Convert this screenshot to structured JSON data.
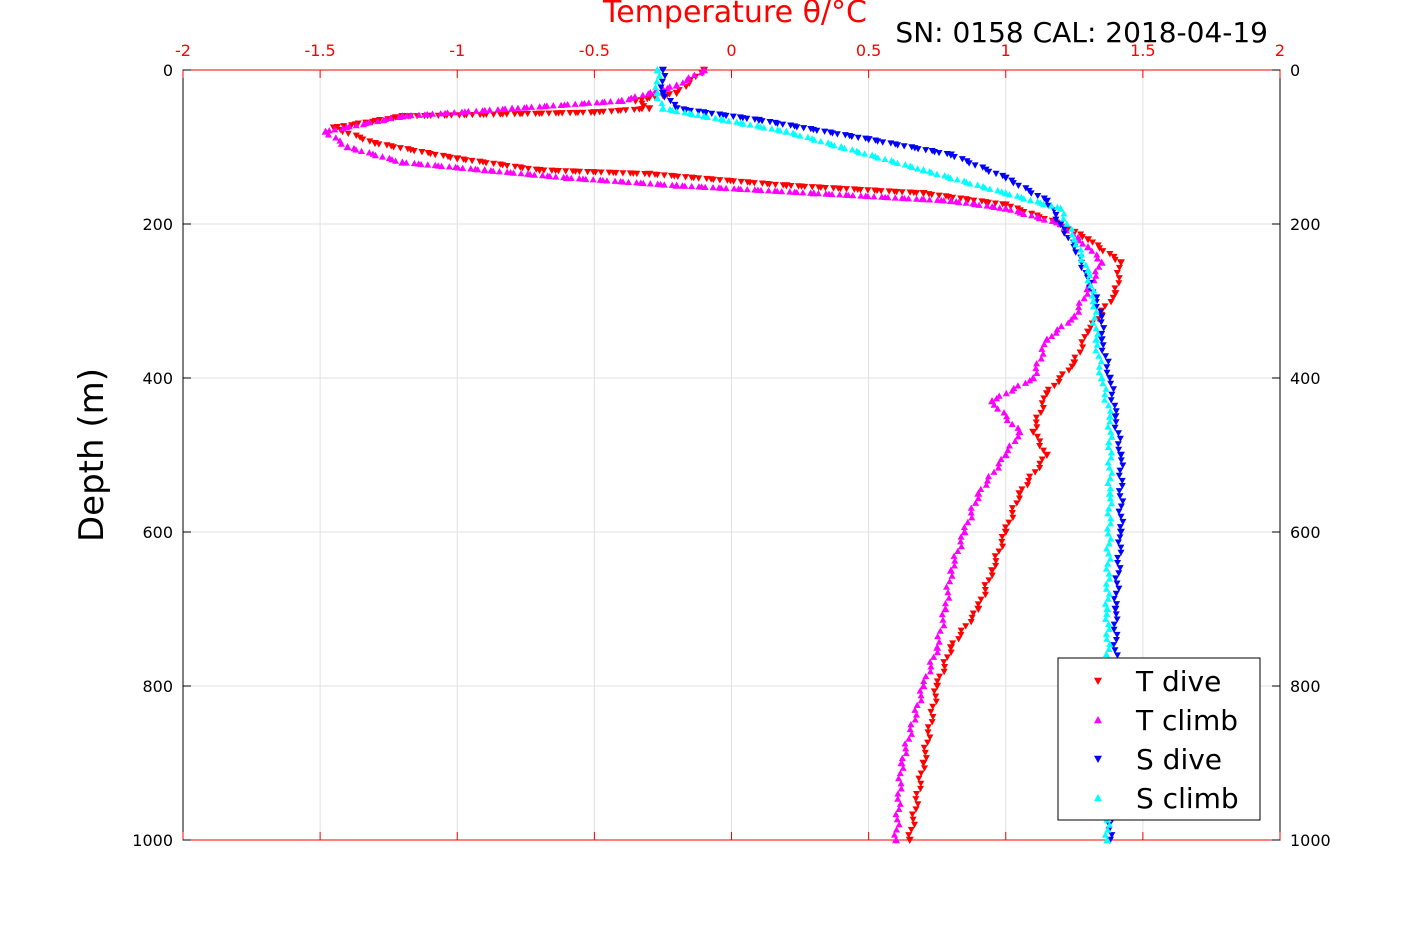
{
  "chart_data": {
    "type": "scatter",
    "xlabel": "Temperature θ/°C",
    "ylabel": "Depth (m)",
    "annotation": "SN: 0158  CAL: 2018-04-19",
    "xlim": [
      -2,
      2
    ],
    "ylim": [
      0,
      1000
    ],
    "y_reversed": true,
    "x_ticks": [
      "-2",
      "-1.5",
      "-1",
      "-0.5",
      "0",
      "0.5",
      "1",
      "1.5",
      "2"
    ],
    "y_ticks": [
      "0",
      "200",
      "400",
      "600",
      "800",
      "1000"
    ],
    "grid": true,
    "legend_position": "bottom-right",
    "axis_color": "#ff0000",
    "series": [
      {
        "name": "T dive",
        "color": "#ff0000",
        "marker": "triangle-down",
        "x": [
          -0.1,
          -0.2,
          -0.35,
          -0.3,
          -0.5,
          -1.2,
          -1.45,
          -1.3,
          -1.0,
          -0.7,
          -0.3,
          0.2,
          0.7,
          1.0,
          1.2,
          1.3,
          1.42,
          1.4,
          1.3,
          1.25,
          1.15,
          1.1,
          1.15,
          1.05,
          1.0,
          0.95,
          0.9,
          0.8,
          0.75,
          0.7,
          0.65
        ],
        "y": [
          0,
          30,
          40,
          50,
          55,
          60,
          75,
          95,
          115,
          130,
          135,
          150,
          160,
          175,
          200,
          220,
          250,
          290,
          340,
          380,
          420,
          470,
          500,
          550,
          600,
          650,
          700,
          750,
          800,
          900,
          1000
        ]
      },
      {
        "name": "T climb",
        "color": "#ff00ff",
        "marker": "triangle-up",
        "x": [
          -0.1,
          -0.2,
          -0.4,
          -0.8,
          -1.2,
          -1.48,
          -1.4,
          -1.2,
          -0.9,
          -0.6,
          -0.2,
          0.3,
          0.8,
          1.0,
          1.2,
          1.3,
          1.35,
          1.25,
          1.15,
          1.1,
          0.95,
          1.05,
          1.0,
          0.9,
          0.85,
          0.8,
          0.78,
          0.75,
          0.7,
          0.62,
          0.6
        ],
        "y": [
          0,
          20,
          40,
          50,
          60,
          80,
          100,
          120,
          130,
          140,
          150,
          160,
          170,
          180,
          200,
          230,
          250,
          320,
          350,
          400,
          430,
          470,
          500,
          550,
          600,
          650,
          700,
          750,
          800,
          900,
          1000
        ]
      },
      {
        "name": "S dive",
        "color": "#0000ff",
        "marker": "triangle-down",
        "x": [
          -0.25,
          -0.25,
          -0.2,
          0.1,
          0.5,
          0.8,
          1.0,
          1.15,
          1.2,
          1.25,
          1.3,
          1.35,
          1.35,
          1.38,
          1.4,
          1.42,
          1.42,
          1.4,
          1.4,
          1.38
        ],
        "y": [
          0,
          30,
          50,
          65,
          90,
          110,
          140,
          170,
          200,
          230,
          270,
          320,
          350,
          400,
          450,
          500,
          600,
          700,
          800,
          1000
        ]
      },
      {
        "name": "S climb",
        "color": "#00ffff",
        "marker": "triangle-up",
        "x": [
          -0.27,
          -0.27,
          -0.25,
          -0.1,
          0.2,
          0.4,
          0.7,
          1.0,
          1.2,
          1.25,
          1.3,
          1.32,
          1.33,
          1.35,
          1.38,
          1.38,
          1.37,
          1.38,
          1.37
        ],
        "y": [
          0,
          30,
          50,
          60,
          80,
          100,
          130,
          160,
          180,
          220,
          260,
          300,
          350,
          400,
          450,
          550,
          700,
          850,
          1000
        ]
      }
    ]
  }
}
